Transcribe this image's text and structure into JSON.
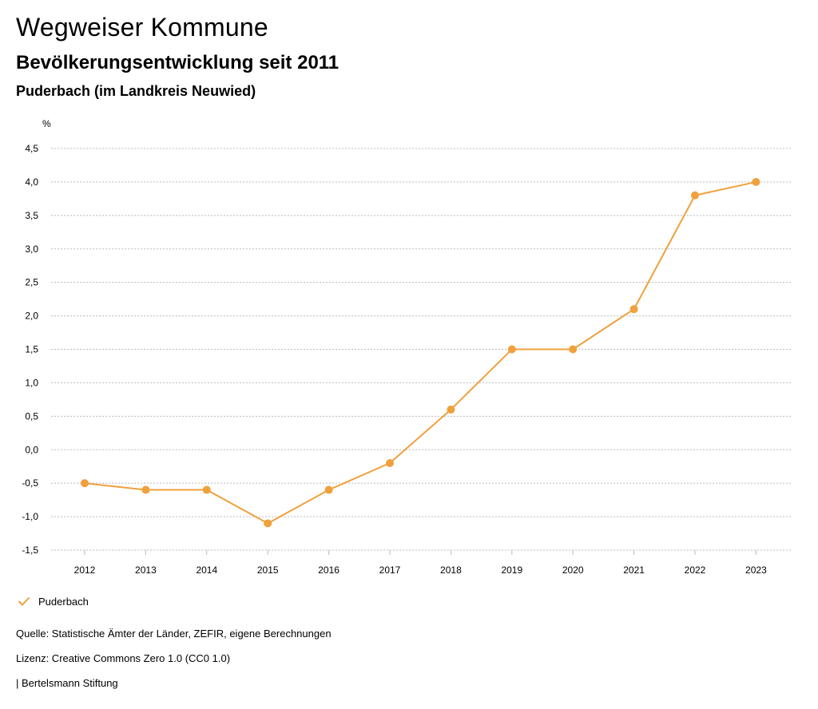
{
  "header": {
    "title": "Wegweiser Kommune",
    "subtitle": "Bevölkerungsentwicklung seit 2011",
    "region": "Puderbach (im Landkreis Neuwied)"
  },
  "footer": {
    "source": "Quelle: Statistische Ämter der Länder, ZEFIR, eigene Berechnungen",
    "license": "Lizenz: Creative Commons Zero 1.0 (CC0 1.0)",
    "publisher": "| Bertelsmann Stiftung"
  },
  "colors": {
    "series": "#f0a03c",
    "grid": "#bbbbbb",
    "axis": "#000000"
  },
  "chart_data": {
    "type": "line",
    "x": [
      "2012",
      "2013",
      "2014",
      "2015",
      "2016",
      "2017",
      "2018",
      "2019",
      "2020",
      "2021",
      "2022",
      "2023"
    ],
    "series": [
      {
        "name": "Puderbach",
        "values": [
          -0.5,
          -0.6,
          -0.6,
          -1.1,
          -0.6,
          -0.2,
          0.6,
          1.5,
          1.5,
          2.1,
          3.8,
          4.0
        ]
      }
    ],
    "ylabel": "%",
    "ylim": [
      -1.5,
      4.5
    ],
    "yticks": [
      4.5,
      4.0,
      3.5,
      3.0,
      2.5,
      2.0,
      1.5,
      1.0,
      0.5,
      0.0,
      -0.5,
      -1.0,
      -1.5
    ],
    "ytick_labels": [
      "4,5",
      "4,0",
      "3,5",
      "3,0",
      "2,5",
      "2,0",
      "1,5",
      "1,0",
      "0,5",
      "0,0",
      "-0,5",
      "-1,0",
      "-1,5"
    ],
    "grid": true,
    "grid_style": "dotted",
    "legend_position": "bottom-left"
  }
}
